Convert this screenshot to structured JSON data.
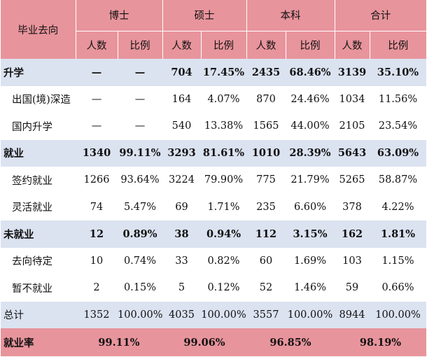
{
  "header": {
    "corner": "毕业去向",
    "groups": [
      "博士",
      "硕士",
      "本科",
      "合计"
    ],
    "sub": [
      "人数",
      "比例"
    ]
  },
  "rows": [
    {
      "label": "升学",
      "kind": "cat",
      "cells": [
        "—",
        "—",
        "704",
        "17.45%",
        "2435",
        "68.46%",
        "3139",
        "35.10%"
      ]
    },
    {
      "label": "出国(境)深造",
      "kind": "sub",
      "cells": [
        "—",
        "—",
        "164",
        "4.07%",
        "870",
        "24.46%",
        "1034",
        "11.56%"
      ]
    },
    {
      "label": "国内升学",
      "kind": "sub",
      "cells": [
        "—",
        "—",
        "540",
        "13.38%",
        "1565",
        "44.00%",
        "2105",
        "23.54%"
      ]
    },
    {
      "label": "就业",
      "kind": "cat",
      "cells": [
        "1340",
        "99.11%",
        "3293",
        "81.61%",
        "1010",
        "28.39%",
        "5643",
        "63.09%"
      ]
    },
    {
      "label": "签约就业",
      "kind": "sub",
      "cells": [
        "1266",
        "93.64%",
        "3224",
        "79.90%",
        "775",
        "21.79%",
        "5265",
        "58.87%"
      ]
    },
    {
      "label": "灵活就业",
      "kind": "sub",
      "cells": [
        "74",
        "5.47%",
        "69",
        "1.71%",
        "235",
        "6.60%",
        "378",
        "4.22%"
      ]
    },
    {
      "label": "未就业",
      "kind": "cat",
      "cells": [
        "12",
        "0.89%",
        "38",
        "0.94%",
        "112",
        "3.15%",
        "162",
        "1.81%"
      ]
    },
    {
      "label": "去向待定",
      "kind": "sub",
      "cells": [
        "10",
        "0.74%",
        "33",
        "0.82%",
        "60",
        "1.69%",
        "103",
        "1.15%"
      ]
    },
    {
      "label": "暂不就业",
      "kind": "sub",
      "cells": [
        "2",
        "0.15%",
        "5",
        "0.12%",
        "52",
        "1.46%",
        "59",
        "0.66%"
      ]
    },
    {
      "label": "总计",
      "kind": "total",
      "cells": [
        "1352",
        "100.00%",
        "4035",
        "100.00%",
        "3557",
        "100.00%",
        "8944",
        "100.00%"
      ]
    }
  ],
  "employment_rate": {
    "label": "就业率",
    "values": [
      "99.11%",
      "99.06%",
      "96.85%",
      "98.19%"
    ]
  },
  "colors": {
    "header_bg": "#e8949c",
    "category_bg": "#dbe2f0",
    "subrow_bg": "#ffffff"
  }
}
